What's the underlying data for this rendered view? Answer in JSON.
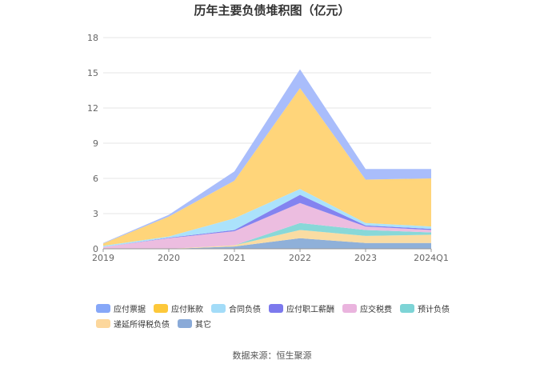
{
  "chart_data": {
    "type": "area",
    "stacked": true,
    "title": "历年主要负债堆积图（亿元）",
    "categories": [
      "2019",
      "2020",
      "2021",
      "2022",
      "2023",
      "2024Q1"
    ],
    "ylim": [
      0,
      18
    ],
    "yticks": [
      0,
      3,
      6,
      9,
      12,
      15,
      18
    ],
    "grid": true,
    "legend_position": "bottom",
    "series": [
      {
        "name": "其它",
        "color": "#8fb0d9",
        "values": [
          0.0,
          0.0,
          0.2,
          0.9,
          0.5,
          0.5
        ]
      },
      {
        "name": "递延所得税负债",
        "color": "#fadca2",
        "values": [
          0.0,
          0.0,
          0.1,
          0.7,
          0.6,
          0.7
        ]
      },
      {
        "name": "预计负债",
        "color": "#88d8d8",
        "values": [
          0.0,
          0.0,
          0.0,
          0.6,
          0.5,
          0.2
        ]
      },
      {
        "name": "应交税费",
        "color": "#ecbde0",
        "values": [
          0.15,
          0.9,
          1.2,
          1.7,
          0.3,
          0.2
        ]
      },
      {
        "name": "应付职工薪酬",
        "color": "#8383f0",
        "values": [
          0.0,
          0.05,
          0.1,
          0.7,
          0.1,
          0.1
        ]
      },
      {
        "name": "合同负债",
        "color": "#abe2fb",
        "values": [
          0.1,
          0.1,
          1.0,
          0.5,
          0.2,
          0.2
        ]
      },
      {
        "name": "应付账款",
        "color": "#ffd57a",
        "values": [
          0.2,
          1.7,
          3.2,
          8.6,
          3.7,
          4.1
        ]
      },
      {
        "name": "应付票据",
        "color": "#a9bdfb",
        "values": [
          0.05,
          0.15,
          0.8,
          1.6,
          0.9,
          0.8
        ]
      }
    ]
  },
  "legend_items": [
    {
      "label": "应付票据",
      "color": "#86a7f8"
    },
    {
      "label": "应付账款",
      "color": "#fdc83a"
    },
    {
      "label": "合同负债",
      "color": "#a3dcf8"
    },
    {
      "label": "应付职工薪酬",
      "color": "#7c79ed"
    },
    {
      "label": "应交税费",
      "color": "#eab4de"
    },
    {
      "label": "预计负债",
      "color": "#7dd4d6"
    },
    {
      "label": "递延所得税负债",
      "color": "#fcd79c"
    },
    {
      "label": "其它",
      "color": "#8aaad8"
    }
  ],
  "source": "数据来源：恒生聚源"
}
